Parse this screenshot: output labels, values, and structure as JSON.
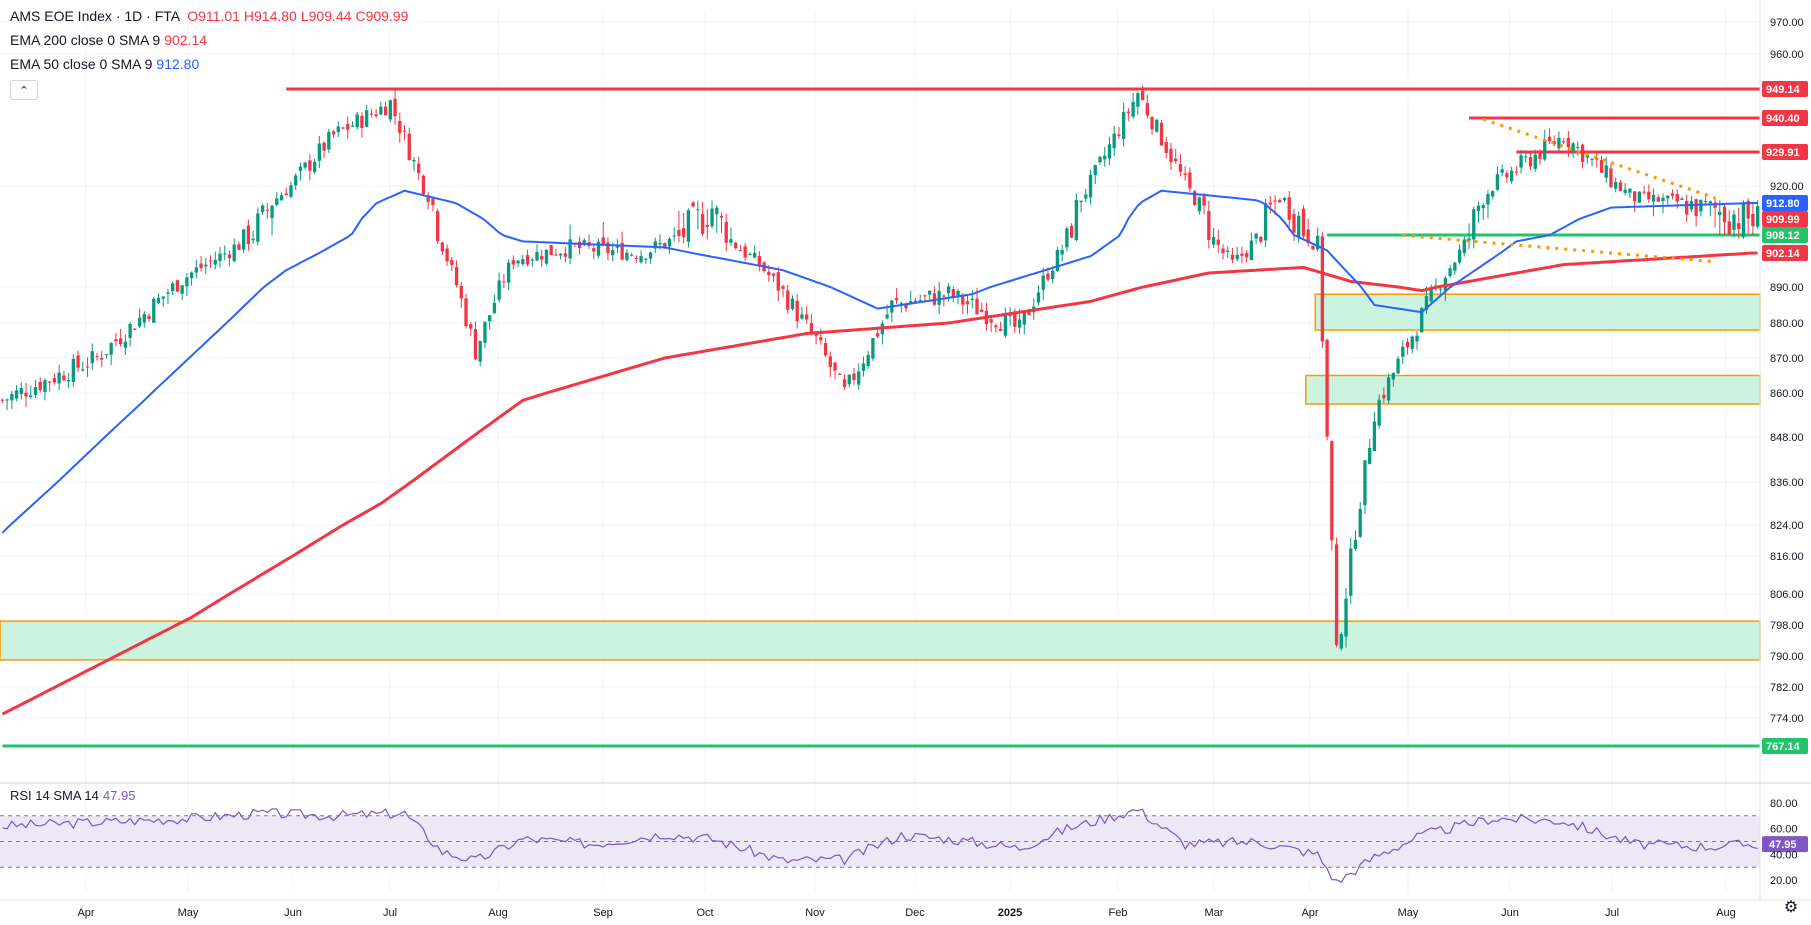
{
  "header": {
    "symbol": "AMS EOE Index · 1D · FTA",
    "ohlc": [
      {
        "label": "O",
        "value": "911.01"
      },
      {
        "label": "H",
        "value": "914.80"
      },
      {
        "label": "L",
        "value": "909.44"
      },
      {
        "label": "C",
        "value": "909.99"
      }
    ],
    "ema200_label": "EMA 200 close 0 SMA 9",
    "ema200_value": "902.14",
    "ema50_label": "EMA 50 close 0 SMA 9",
    "ema50_value": "912.80",
    "collapse_icon": "chevron-up-icon"
  },
  "rsi_legend": {
    "label": "RSI 14 SMA 14",
    "value": "47.95"
  },
  "colors": {
    "up": "#089981",
    "down": "#f23645",
    "ema200": "#f23645",
    "ema50": "#2962ff",
    "zone_fill": "#ccf2e0",
    "zone_border": "#ff9800",
    "support_green": "#22c36b",
    "resistance_red": "#f23645",
    "rsi_line": "#7e57c2",
    "rsi_band": "#ede7f6"
  },
  "chart_data": {
    "type": "candlestick",
    "x_labels": [
      "Apr",
      "May",
      "Jun",
      "Jul",
      "Aug",
      "Sep",
      "Oct",
      "Nov",
      "Dec",
      "2025",
      "Feb",
      "Mar",
      "Apr",
      "May",
      "Jun",
      "Jul",
      "Aug"
    ],
    "y_ticks": [
      "970.00",
      "960.00",
      "920.00",
      "890.00",
      "880.00",
      "870.00",
      "860.00",
      "848.00",
      "836.00",
      "824.00",
      "816.00",
      "806.00",
      "798.00",
      "790.00",
      "782.00",
      "774.00"
    ],
    "ohlc_anchor_closes": [
      [
        0,
        858
      ],
      [
        20,
        870
      ],
      [
        40,
        895
      ],
      [
        55,
        910
      ],
      [
        70,
        935
      ],
      [
        82,
        945
      ],
      [
        93,
        905
      ],
      [
        100,
        872
      ],
      [
        108,
        900
      ],
      [
        120,
        904
      ],
      [
        135,
        902
      ],
      [
        150,
        912
      ],
      [
        160,
        898
      ],
      [
        172,
        875
      ],
      [
        178,
        860
      ],
      [
        188,
        885
      ],
      [
        200,
        888
      ],
      [
        215,
        878
      ],
      [
        228,
        915
      ],
      [
        240,
        948
      ],
      [
        252,
        915
      ],
      [
        260,
        898
      ],
      [
        270,
        915
      ],
      [
        278,
        905
      ],
      [
        282,
        790
      ],
      [
        285,
        815
      ],
      [
        290,
        855
      ],
      [
        300,
        882
      ],
      [
        315,
        920
      ],
      [
        330,
        935
      ],
      [
        345,
        915
      ],
      [
        360,
        912
      ],
      [
        370,
        910
      ]
    ],
    "ema200_series": [
      [
        0,
        775
      ],
      [
        40,
        800
      ],
      [
        80,
        830
      ],
      [
        110,
        858
      ],
      [
        140,
        870
      ],
      [
        170,
        877
      ],
      [
        200,
        880
      ],
      [
        230,
        886
      ],
      [
        255,
        895
      ],
      [
        275,
        897
      ],
      [
        285,
        892
      ],
      [
        300,
        889
      ],
      [
        330,
        898
      ],
      [
        370,
        902.14
      ]
    ],
    "ema50_series": [
      [
        0,
        822
      ],
      [
        30,
        858
      ],
      [
        60,
        896
      ],
      [
        85,
        918
      ],
      [
        110,
        906
      ],
      [
        140,
        904
      ],
      [
        165,
        896
      ],
      [
        185,
        884
      ],
      [
        205,
        888
      ],
      [
        230,
        901
      ],
      [
        245,
        918
      ],
      [
        265,
        914
      ],
      [
        280,
        903
      ],
      [
        290,
        885
      ],
      [
        300,
        883
      ],
      [
        320,
        906
      ],
      [
        340,
        912
      ],
      [
        370,
        912.8
      ]
    ],
    "horizontal_lines": [
      {
        "price": 949.14,
        "label": "949.14",
        "color": "#f23645",
        "start_bar": 60
      },
      {
        "price": 940.4,
        "label": "940.40",
        "color": "#f23645",
        "start_bar": 310
      },
      {
        "price": 929.91,
        "label": "929.91",
        "color": "#f23645",
        "start_bar": 320
      },
      {
        "price": 908.12,
        "label": "908.12",
        "color": "#22c36b",
        "start_bar": 280
      },
      {
        "price": 767.14,
        "label": "767.14",
        "color": "#22c36b",
        "start_bar": 0
      }
    ],
    "price_badges": [
      {
        "price": 912.8,
        "label": "912.80",
        "color": "#2962ff"
      },
      {
        "price": 909.99,
        "label": "909.99",
        "color": "#f23645"
      },
      {
        "price": 902.14,
        "label": "902.14",
        "color": "#f23645"
      }
    ],
    "zones": [
      {
        "top": 888,
        "bottom": 878,
        "start_bar": 278
      },
      {
        "top": 865,
        "bottom": 857,
        "start_bar": 276
      },
      {
        "top": 799,
        "bottom": 789,
        "start_bar": 0
      }
    ],
    "trendlines": [
      {
        "from": [
          313,
          940
        ],
        "to": [
          362,
          915
        ]
      },
      {
        "from": [
          296,
          908
        ],
        "to": [
          362,
          899
        ]
      }
    ],
    "rsi": {
      "ticks": [
        "80.00",
        "60.00",
        "40.00",
        "20.00"
      ],
      "levels": [
        70,
        50,
        30
      ],
      "current": 47.95,
      "anchors": [
        [
          0,
          62
        ],
        [
          20,
          65
        ],
        [
          40,
          68
        ],
        [
          55,
          72
        ],
        [
          70,
          70
        ],
        [
          85,
          72
        ],
        [
          93,
          42
        ],
        [
          100,
          35
        ],
        [
          110,
          52
        ],
        [
          125,
          48
        ],
        [
          140,
          56
        ],
        [
          150,
          52
        ],
        [
          165,
          35
        ],
        [
          178,
          36
        ],
        [
          190,
          55
        ],
        [
          200,
          52
        ],
        [
          215,
          45
        ],
        [
          225,
          60
        ],
        [
          240,
          75
        ],
        [
          250,
          48
        ],
        [
          265,
          50
        ],
        [
          278,
          40
        ],
        [
          282,
          18
        ],
        [
          290,
          38
        ],
        [
          300,
          55
        ],
        [
          315,
          68
        ],
        [
          330,
          66
        ],
        [
          345,
          48
        ],
        [
          360,
          46
        ],
        [
          370,
          47.95
        ]
      ]
    }
  }
}
